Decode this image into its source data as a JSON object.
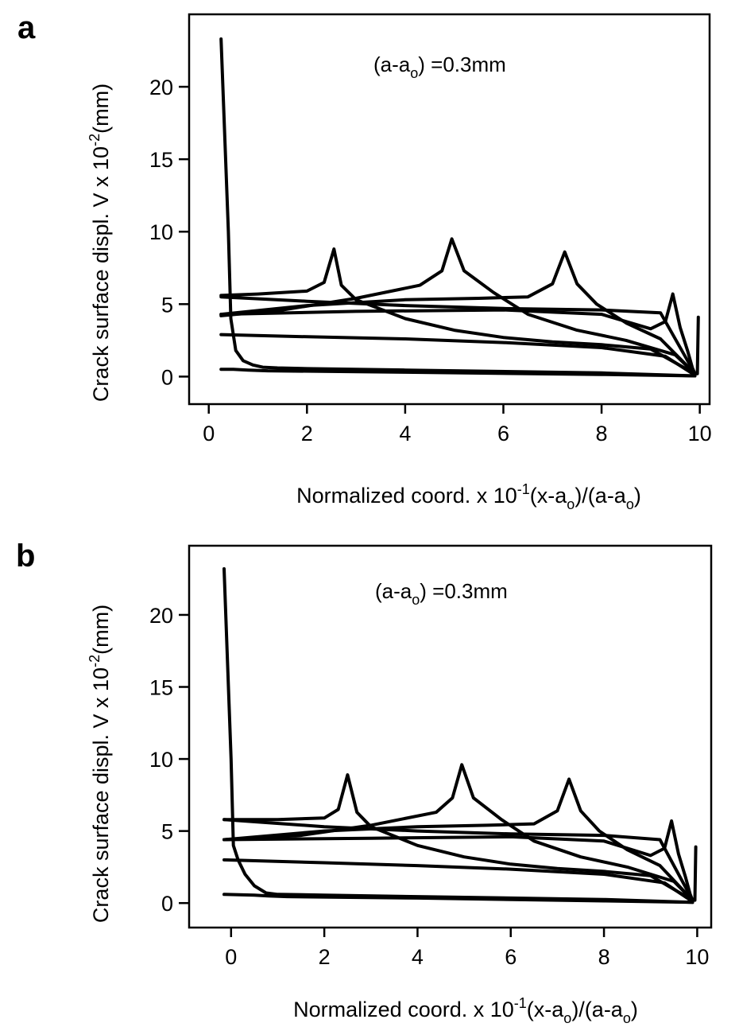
{
  "chart_data": [
    {
      "type": "line",
      "panel_label": "a",
      "annotation": {
        "pre": "(a-a",
        "sub": "o",
        "post": ") =0.3mm"
      },
      "ylabel": {
        "pre": "Crack surface displ. V x 10",
        "sup": "-2",
        "post": "(mm)"
      },
      "xlabel": {
        "pre": "Normalized coord. x 10",
        "sup": "-1",
        "mid1": "(x-a",
        "sub1": "o",
        "mid2": ")/(a-a",
        "sub2": "o",
        "post": ")"
      },
      "xlim": [
        -0.4,
        10.2
      ],
      "ylim": [
        -1.9,
        25
      ],
      "xticks": [
        0,
        2,
        4,
        6,
        8,
        10
      ],
      "yticks": [
        0,
        5,
        10,
        15,
        20
      ],
      "grid": false,
      "series": [
        {
          "x": [
            0.25,
            0.5,
            0.8,
            1.2,
            4,
            8,
            9.9
          ],
          "y": [
            0.5,
            0.5,
            0.45,
            0.4,
            0.3,
            0.15,
            0.05
          ]
        },
        {
          "x": [
            0.25,
            0.4,
            0.45,
            0.55,
            0.7,
            0.9,
            1.1,
            1.4,
            2,
            4,
            8,
            9.9
          ],
          "y": [
            23.3,
            10,
            4,
            1.8,
            1.1,
            0.8,
            0.65,
            0.6,
            0.55,
            0.45,
            0.25,
            0.05
          ]
        },
        {
          "x": [
            0.25,
            2,
            4,
            6,
            8,
            9.3,
            9.9
          ],
          "y": [
            2.9,
            2.75,
            2.6,
            2.35,
            2.0,
            1.4,
            0.1
          ]
        },
        {
          "x": [
            0.25,
            1.0,
            2.0,
            2.35,
            2.55,
            2.7,
            3,
            4,
            5,
            6,
            7,
            8,
            9,
            9.9
          ],
          "y": [
            5.6,
            5.7,
            5.9,
            6.5,
            8.8,
            6.3,
            5.3,
            4.0,
            3.2,
            2.7,
            2.4,
            2.2,
            1.9,
            0.2
          ]
        },
        {
          "x": [
            0.25,
            2,
            4,
            6,
            8,
            9.2,
            9.9
          ],
          "y": [
            5.5,
            5.2,
            4.9,
            4.7,
            4.6,
            4.4,
            0.2
          ]
        },
        {
          "x": [
            0.25,
            1.5,
            3,
            4.3,
            4.75,
            4.95,
            5.2,
            5.8,
            6.5,
            7.5,
            8.5,
            9.5,
            9.9
          ],
          "y": [
            4.2,
            4.6,
            5.4,
            6.3,
            7.3,
            9.5,
            7.3,
            5.8,
            4.3,
            3.2,
            2.5,
            1.5,
            0.2
          ]
        },
        {
          "x": [
            0.25,
            2,
            4,
            5.5,
            6.5,
            7.0,
            7.25,
            7.5,
            7.9,
            8.5,
            9.2,
            9.9
          ],
          "y": [
            4.3,
            4.9,
            5.3,
            5.4,
            5.5,
            6.4,
            8.6,
            6.4,
            5.0,
            3.7,
            2.6,
            0.2
          ]
        },
        {
          "x": [
            0.25,
            3,
            6,
            8,
            9.0,
            9.3,
            9.45,
            9.6,
            9.75,
            9.85,
            9.9,
            9.95,
            9.97
          ],
          "y": [
            4.3,
            4.5,
            4.6,
            4.3,
            3.3,
            3.8,
            5.7,
            3.4,
            1.8,
            0.6,
            0.2,
            0.2,
            4.1
          ]
        }
      ]
    },
    {
      "type": "line",
      "panel_label": "b",
      "annotation": {
        "pre": "(a-a",
        "sub": "o",
        "post": ") =0.3mm"
      },
      "ylabel": {
        "pre": "Crack surface displ. V x 10",
        "sup": "-2",
        "post": "(mm)"
      },
      "xlabel": {
        "pre": "Normalized coord. x 10",
        "sup": "-1",
        "mid1": "(x-a",
        "sub1": "o",
        "mid2": ")/(a-a",
        "sub2": "o",
        "post": ")"
      },
      "xlim": [
        -0.9,
        10.3
      ],
      "ylim": [
        -1.7,
        24.8
      ],
      "xticks": [
        0,
        2,
        4,
        6,
        8,
        10
      ],
      "yticks": [
        0,
        5,
        10,
        15,
        20
      ],
      "grid": false,
      "series": [
        {
          "x": [
            -0.15,
            0.5,
            0.8,
            1.2,
            4,
            8,
            9.9
          ],
          "y": [
            0.6,
            0.55,
            0.5,
            0.45,
            0.35,
            0.15,
            0.05
          ]
        },
        {
          "x": [
            -0.15,
            0.0,
            0.05,
            0.15,
            0.3,
            0.5,
            0.75,
            1.0,
            2,
            4,
            8,
            9.9
          ],
          "y": [
            23.2,
            10,
            4,
            3.0,
            2.0,
            1.2,
            0.7,
            0.6,
            0.55,
            0.45,
            0.25,
            0.05
          ]
        },
        {
          "x": [
            -0.15,
            2,
            4,
            6,
            8,
            9.3,
            9.9
          ],
          "y": [
            3.0,
            2.8,
            2.6,
            2.35,
            2.0,
            1.4,
            0.1
          ]
        },
        {
          "x": [
            -0.15,
            1.0,
            2.0,
            2.3,
            2.5,
            2.7,
            3,
            4,
            5,
            6,
            7,
            8,
            9,
            9.9
          ],
          "y": [
            5.8,
            5.8,
            5.9,
            6.5,
            8.9,
            6.3,
            5.3,
            4.0,
            3.2,
            2.7,
            2.4,
            2.2,
            1.9,
            0.2
          ]
        },
        {
          "x": [
            -0.15,
            2,
            4,
            6,
            8,
            9.2,
            9.9
          ],
          "y": [
            5.8,
            5.3,
            5.0,
            4.8,
            4.7,
            4.4,
            0.2
          ]
        },
        {
          "x": [
            -0.15,
            1.5,
            3,
            4.4,
            4.75,
            4.95,
            5.2,
            5.8,
            6.5,
            7.5,
            8.5,
            9.5,
            9.9
          ],
          "y": [
            4.4,
            4.7,
            5.4,
            6.3,
            7.3,
            9.6,
            7.3,
            5.8,
            4.3,
            3.2,
            2.5,
            1.5,
            0.2
          ]
        },
        {
          "x": [
            -0.15,
            2,
            4,
            5.5,
            6.5,
            7.0,
            7.25,
            7.5,
            7.9,
            8.5,
            9.2,
            9.9
          ],
          "y": [
            4.4,
            5.0,
            5.3,
            5.4,
            5.5,
            6.4,
            8.6,
            6.4,
            5.0,
            3.7,
            2.6,
            0.2
          ]
        },
        {
          "x": [
            -0.15,
            3,
            6,
            8,
            9.0,
            9.3,
            9.45,
            9.6,
            9.75,
            9.85,
            9.9,
            9.95,
            9.97
          ],
          "y": [
            4.4,
            4.5,
            4.6,
            4.3,
            3.3,
            3.8,
            5.7,
            3.4,
            1.8,
            0.6,
            0.2,
            0.2,
            3.9
          ]
        }
      ]
    }
  ]
}
